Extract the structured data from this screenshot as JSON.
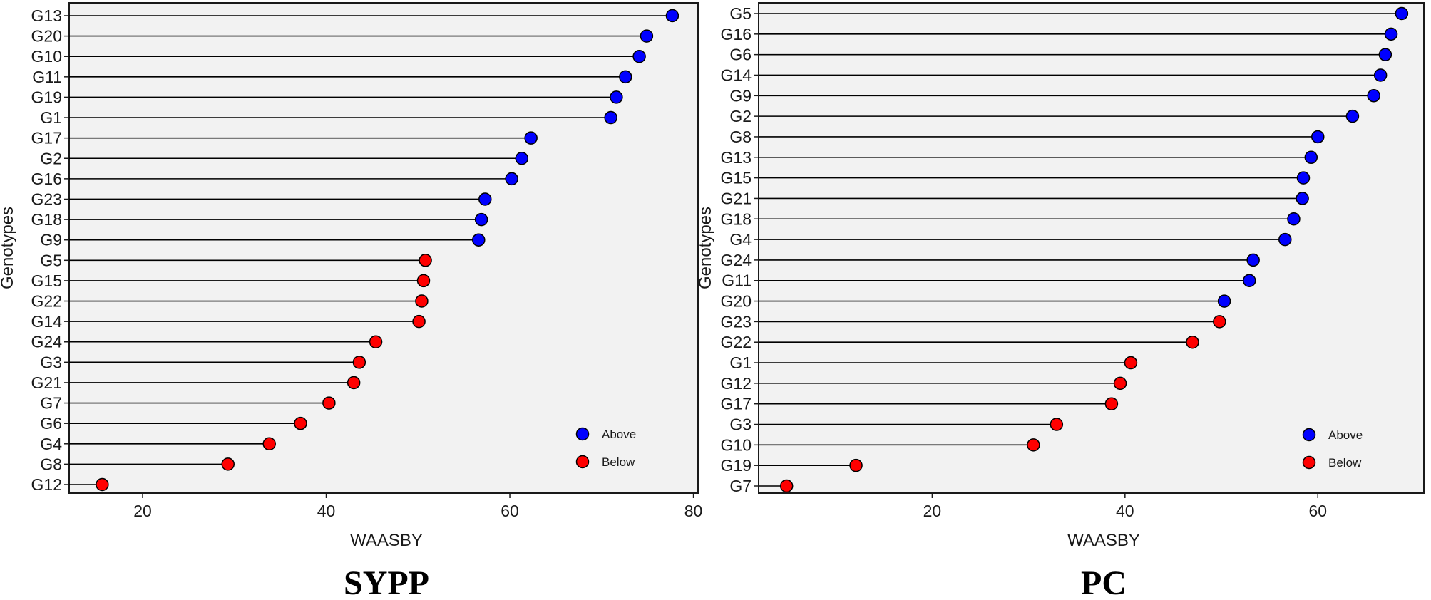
{
  "chart_data": [
    {
      "type": "lollipop",
      "caption": "SYPP",
      "xlabel": "WAASBY",
      "ylabel": "Genotypes",
      "xlim": [
        12,
        80.5
      ],
      "xticks": [
        20,
        40,
        60,
        80
      ],
      "grid": false,
      "legend_position": "bottom-right",
      "series": [
        {
          "name": "Above",
          "color": "#0000ff"
        },
        {
          "name": "Below",
          "color": "#ff0000"
        }
      ],
      "points": [
        {
          "label": "G13",
          "value": 77.7,
          "group": "Above"
        },
        {
          "label": "G20",
          "value": 74.9,
          "group": "Above"
        },
        {
          "label": "G10",
          "value": 74.1,
          "group": "Above"
        },
        {
          "label": "G11",
          "value": 72.6,
          "group": "Above"
        },
        {
          "label": "G19",
          "value": 71.6,
          "group": "Above"
        },
        {
          "label": "G1",
          "value": 71.0,
          "group": "Above"
        },
        {
          "label": "G17",
          "value": 62.3,
          "group": "Above"
        },
        {
          "label": "G2",
          "value": 61.3,
          "group": "Above"
        },
        {
          "label": "G16",
          "value": 60.2,
          "group": "Above"
        },
        {
          "label": "G23",
          "value": 57.3,
          "group": "Above"
        },
        {
          "label": "G18",
          "value": 56.9,
          "group": "Above"
        },
        {
          "label": "G9",
          "value": 56.6,
          "group": "Above"
        },
        {
          "label": "G5",
          "value": 50.8,
          "group": "Below"
        },
        {
          "label": "G15",
          "value": 50.6,
          "group": "Below"
        },
        {
          "label": "G22",
          "value": 50.4,
          "group": "Below"
        },
        {
          "label": "G14",
          "value": 50.1,
          "group": "Below"
        },
        {
          "label": "G24",
          "value": 45.4,
          "group": "Below"
        },
        {
          "label": "G3",
          "value": 43.6,
          "group": "Below"
        },
        {
          "label": "G21",
          "value": 43.0,
          "group": "Below"
        },
        {
          "label": "G7",
          "value": 40.3,
          "group": "Below"
        },
        {
          "label": "G6",
          "value": 37.2,
          "group": "Below"
        },
        {
          "label": "G4",
          "value": 33.8,
          "group": "Below"
        },
        {
          "label": "G8",
          "value": 29.3,
          "group": "Below"
        },
        {
          "label": "G12",
          "value": 15.6,
          "group": "Below"
        }
      ]
    },
    {
      "type": "lollipop",
      "caption": "PC",
      "xlabel": "WAASBY",
      "ylabel": "Genotypes",
      "xlim": [
        2,
        71
      ],
      "xticks": [
        20,
        40,
        60
      ],
      "grid": false,
      "legend_position": "bottom-right",
      "series": [
        {
          "name": "Above",
          "color": "#0000ff"
        },
        {
          "name": "Below",
          "color": "#ff0000"
        }
      ],
      "points": [
        {
          "label": "G5",
          "value": 68.7,
          "group": "Above"
        },
        {
          "label": "G16",
          "value": 67.6,
          "group": "Above"
        },
        {
          "label": "G6",
          "value": 67.0,
          "group": "Above"
        },
        {
          "label": "G14",
          "value": 66.5,
          "group": "Above"
        },
        {
          "label": "G9",
          "value": 65.8,
          "group": "Above"
        },
        {
          "label": "G2",
          "value": 63.6,
          "group": "Above"
        },
        {
          "label": "G8",
          "value": 60.0,
          "group": "Above"
        },
        {
          "label": "G13",
          "value": 59.3,
          "group": "Above"
        },
        {
          "label": "G15",
          "value": 58.5,
          "group": "Above"
        },
        {
          "label": "G21",
          "value": 58.4,
          "group": "Above"
        },
        {
          "label": "G18",
          "value": 57.5,
          "group": "Above"
        },
        {
          "label": "G4",
          "value": 56.6,
          "group": "Above"
        },
        {
          "label": "G24",
          "value": 53.3,
          "group": "Above"
        },
        {
          "label": "G11",
          "value": 52.9,
          "group": "Above"
        },
        {
          "label": "G20",
          "value": 50.3,
          "group": "Above"
        },
        {
          "label": "G23",
          "value": 49.8,
          "group": "Below"
        },
        {
          "label": "G22",
          "value": 47.0,
          "group": "Below"
        },
        {
          "label": "G1",
          "value": 40.6,
          "group": "Below"
        },
        {
          "label": "G12",
          "value": 39.5,
          "group": "Below"
        },
        {
          "label": "G17",
          "value": 38.6,
          "group": "Below"
        },
        {
          "label": "G3",
          "value": 32.9,
          "group": "Below"
        },
        {
          "label": "G10",
          "value": 30.5,
          "group": "Below"
        },
        {
          "label": "G19",
          "value": 12.1,
          "group": "Below"
        },
        {
          "label": "G7",
          "value": 4.9,
          "group": "Below"
        }
      ]
    }
  ]
}
